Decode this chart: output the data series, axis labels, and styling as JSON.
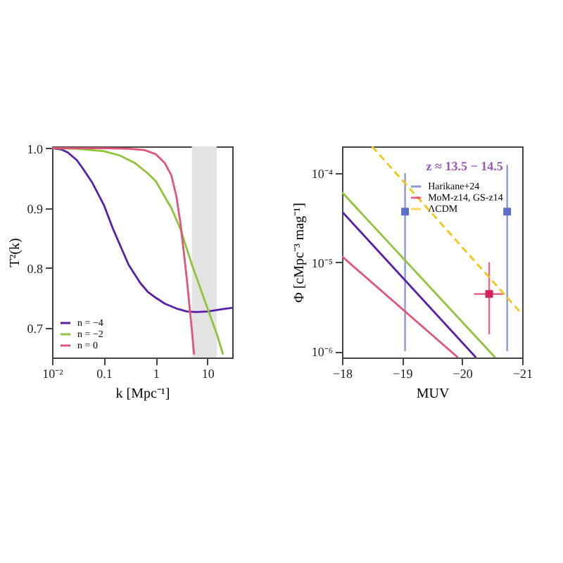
{
  "chart_data": [
    {
      "type": "line",
      "xlabel": "k [Mpc⁻¹]",
      "ylabel": "T²(k)",
      "log": "x",
      "legend": "bottom left",
      "grid": false,
      "xlim": [
        0.01,
        30
      ],
      "xticks": [
        {
          "value": 0.01,
          "label": "10⁻²"
        },
        0.1,
        1,
        10
      ],
      "ylim": [
        0.65,
        1.003
      ],
      "yticks": [
        0.7,
        0.8,
        0.9,
        {
          "value": 1.0,
          "label": "1.0"
        }
      ],
      "bands": [
        {
          "axis": "x",
          "from": 5,
          "to": 15,
          "label": null,
          "color": "#e3e3e3"
        }
      ],
      "series": [
        {
          "name": "n = −4",
          "color": "#5a1fa8",
          "x": [
            0.01,
            0.015,
            0.02,
            0.03,
            0.04,
            0.06,
            0.1,
            0.15,
            0.2,
            0.3,
            0.5,
            0.7,
            1,
            1.5,
            2.5,
            4,
            6,
            10,
            20,
            30
          ],
          "values": [
            1.0,
            0.998,
            0.993,
            0.98,
            0.965,
            0.942,
            0.905,
            0.865,
            0.84,
            0.805,
            0.775,
            0.76,
            0.75,
            0.74,
            0.732,
            0.727,
            0.726,
            0.727,
            0.731,
            0.733
          ]
        },
        {
          "name": "n = −2",
          "color": "#8fc43a",
          "x": [
            0.01,
            0.03,
            0.1,
            0.2,
            0.4,
            0.7,
            1,
            2,
            3,
            5,
            7,
            10,
            15,
            20
          ],
          "values": [
            1.0,
            0.999,
            0.995,
            0.988,
            0.975,
            0.958,
            0.945,
            0.9,
            0.865,
            0.805,
            0.77,
            0.732,
            0.69,
            0.655
          ]
        },
        {
          "name": "n = 0",
          "color": "#e0557a",
          "x": [
            0.01,
            0.1,
            0.3,
            0.6,
            1,
            1.5,
            2,
            2.5,
            3,
            3.5,
            4,
            4.5,
            5,
            5.5
          ],
          "values": [
            1.0,
            1.0,
            0.999,
            0.997,
            0.99,
            0.975,
            0.955,
            0.92,
            0.875,
            0.825,
            0.78,
            0.735,
            0.695,
            0.655
          ]
        }
      ]
    },
    {
      "type": "line",
      "xlabel": "MUV",
      "ylabel": "Φ [cMpc⁻³ mag⁻¹]",
      "log": "y",
      "legend": "top right",
      "grid": false,
      "annotations": [
        "z ≈ 13.5 − 14.5"
      ],
      "xlim": [
        -18,
        -21
      ],
      "xticks": [
        {
          "value": -18,
          "label": "−18"
        },
        {
          "value": -19,
          "label": "−19"
        },
        {
          "value": -20,
          "label": "−20"
        },
        {
          "value": -21,
          "label": "−21"
        }
      ],
      "ylim": [
        8.5e-07,
        0.0002
      ],
      "yticks": [
        {
          "value": 1e-06,
          "label": "10⁻⁶"
        },
        {
          "value": 1e-05,
          "label": "10⁻⁵"
        },
        {
          "value": 0.0001,
          "label": "10⁻⁴"
        }
      ],
      "series": [
        {
          "type": "scatter",
          "name": "Harikane+24",
          "color": "#5b6fc7",
          "marker": "square",
          "x": [
            -19.05,
            -20.75
          ],
          "values": [
            3.7e-05,
            3.7e-05
          ],
          "errors": [
            [
              1e-06,
              0.0001
            ],
            [
              1e-06,
              0.000124
            ]
          ]
        },
        {
          "type": "scatter",
          "name": "MoM-z14, GS-z14",
          "color": "#d6245a",
          "marker": "square",
          "x": [
            -20.45
          ],
          "values": [
            4.4e-06
          ],
          "errors": [
            [
              1.55e-06,
              1e-05
            ]
          ],
          "xerrors": [
            0.25
          ]
        },
        {
          "type": "line",
          "name": "ΛCDM",
          "color": "#f5c518",
          "line_style": "dashed",
          "x": [
            -18.5,
            -21
          ],
          "values": [
            0.0002,
            2.6e-06
          ]
        },
        {
          "type": "line",
          "color": "#8fc43a",
          "x": [
            -18,
            -20.55
          ],
          "values": [
            6.1e-05,
            8.5e-07
          ]
        },
        {
          "type": "line",
          "color": "#5a1fa8",
          "x": [
            -18,
            -20.23
          ],
          "values": [
            3.7e-05,
            8.5e-07
          ]
        },
        {
          "type": "line",
          "color": "#e0557a",
          "x": [
            -18,
            -19.93
          ],
          "values": [
            1.16e-05,
            8.5e-07
          ]
        }
      ]
    }
  ]
}
